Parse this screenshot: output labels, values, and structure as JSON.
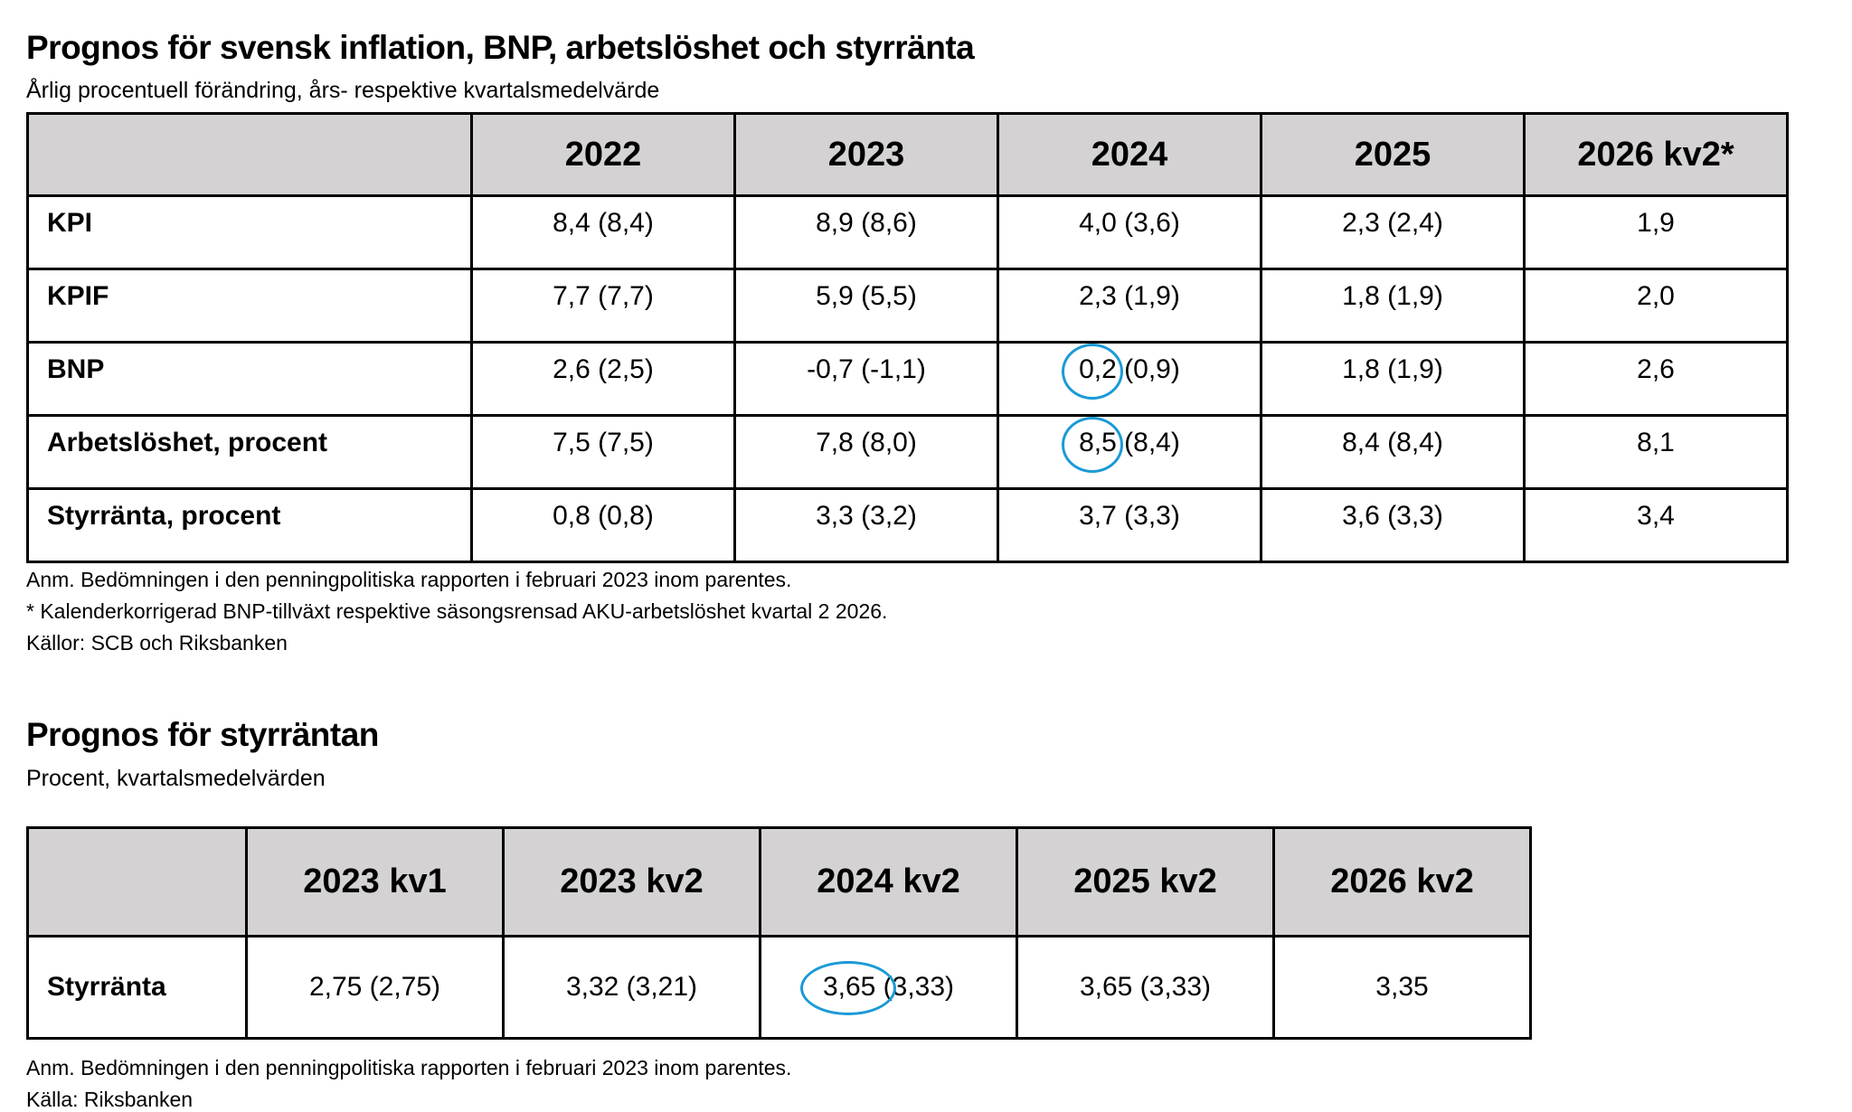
{
  "table1": {
    "title": "Prognos för svensk inflation, BNP, arbetslöshet och styrränta",
    "subtitle": "Årlig procentuell förändring, års- respektive kvartalsmedelvärde",
    "header": [
      "2022",
      "2023",
      "2024",
      "2025",
      "2026 kv2*"
    ],
    "rows": [
      [
        "KPI",
        "8,4 (8,4)",
        "8,9 (8,6)",
        "4,0 (3,6)",
        "2,3 (2,4)",
        "1,9"
      ],
      [
        "KPIF",
        "7,7 (7,7)",
        "5,9 (5,5)",
        "2,3 (1,9)",
        "1,8 (1,9)",
        "2,0"
      ],
      [
        "BNP",
        "2,6 (2,5)",
        "-0,7 (-1,1)",
        "0,2 (0,9)",
        "1,8 (1,9)",
        "2,6"
      ],
      [
        "Arbetslöshet, procent",
        "7,5 (7,5)",
        "7,8 (8,0)",
        "8,5 (8,4)",
        "8,4 (8,4)",
        "8,1"
      ],
      [
        "Styrränta, procent",
        "0,8 (0,8)",
        "3,3 (3,2)",
        "3,7 (3,3)",
        "3,6 (3,3)",
        "3,4"
      ]
    ],
    "notes": [
      "Anm. Bedömningen i den penningpolitiska rapporten i februari 2023 inom parentes.",
      "* Kalenderkorrigerad BNP-tillväxt respektive säsongsrensad AKU-arbetslöshet kvartal 2 2026.",
      "Källor: SCB och Riksbanken"
    ]
  },
  "table2": {
    "title": "Prognos för styrräntan",
    "subtitle": "Procent, kvartalsmedelvärden",
    "header": [
      "2023 kv1",
      "2023 kv2",
      "2024 kv2",
      "2025 kv2",
      "2026 kv2"
    ],
    "rows": [
      [
        "Styrränta",
        "2,75 (2,75)",
        "3,32 (3,21)",
        "3,65 (3,33)",
        "3,65 (3,33)",
        "3,35"
      ]
    ],
    "notes": [
      "Anm. Bedömningen i den penningpolitiska rapporten i februari 2023 inom parentes.",
      "Källa: Riksbanken"
    ]
  }
}
